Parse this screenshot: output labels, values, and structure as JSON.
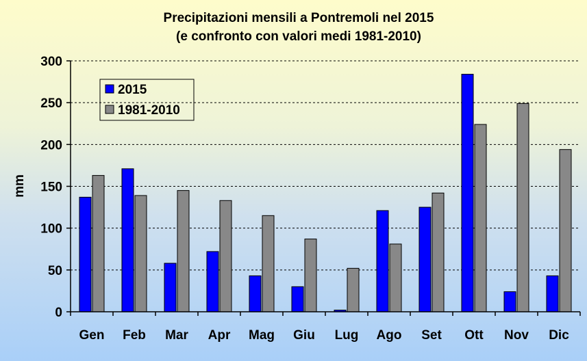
{
  "chart_data": {
    "type": "bar",
    "title": "Precipitazioni mensili a Pontremoli nel 2015",
    "subtitle": "(e confronto con valori medi 1981-2010)",
    "xlabel": "",
    "ylabel": "mm",
    "ylim": [
      0,
      300
    ],
    "yticks": [
      0,
      50,
      100,
      150,
      200,
      250,
      300
    ],
    "grid": true,
    "legend_position": "top-left",
    "categories": [
      "Gen",
      "Feb",
      "Mar",
      "Apr",
      "Mag",
      "Giu",
      "Lug",
      "Ago",
      "Set",
      "Ott",
      "Nov",
      "Dic"
    ],
    "series": [
      {
        "name": "2015",
        "color": "#0000ff",
        "values": [
          137,
          171,
          58,
          72,
          43,
          30,
          2,
          121,
          125,
          284,
          24,
          43
        ]
      },
      {
        "name": "1981-2010",
        "color": "#888888",
        "values": [
          163,
          139,
          145,
          133,
          115,
          87,
          52,
          81,
          142,
          224,
          249,
          194
        ]
      }
    ]
  }
}
